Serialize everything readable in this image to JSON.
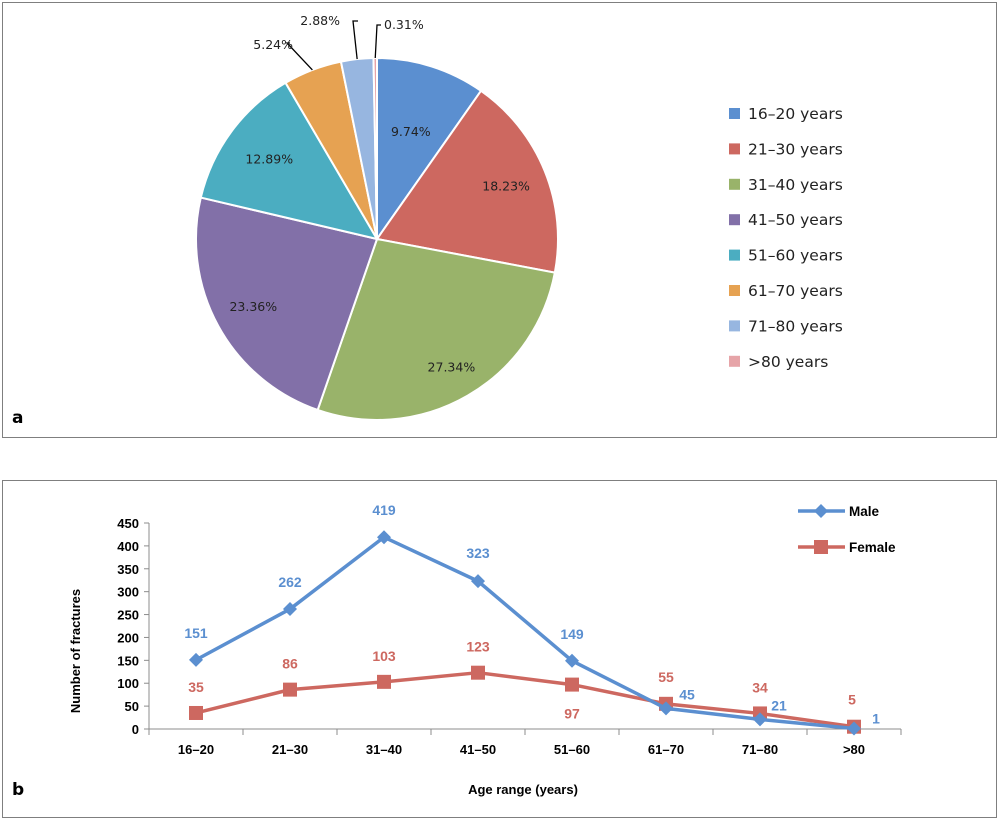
{
  "chart_data": [
    {
      "type": "pie",
      "panel_label": "a",
      "title": "",
      "categories": [
        "16–20 years",
        "21–30 years",
        "31–40 years",
        "41–50 years",
        "51–60 years",
        "61–70 years",
        "71–80 years",
        ">80 years"
      ],
      "values": [
        9.74,
        18.23,
        27.34,
        23.36,
        12.89,
        5.24,
        2.88,
        0.31
      ],
      "labels": [
        "9.74%",
        "18.23%",
        "27.34%",
        "23.36%",
        "12.89%",
        "5.24%",
        "2.88%",
        "0.31%"
      ],
      "colors": [
        "#5b8fd0",
        "#cd6860",
        "#99b36a",
        "#8270a8",
        "#4badc1",
        "#e6a252",
        "#97b6e0",
        "#e6a4a8"
      ],
      "legend_position": "right"
    },
    {
      "type": "line",
      "panel_label": "b",
      "title": "",
      "xlabel": "Age range (years)",
      "ylabel": "Number of fractures",
      "categories": [
        "16–20",
        "21–30",
        "31–40",
        "41–50",
        "51–60",
        "61–70",
        "71–80",
        ">80"
      ],
      "ylim": [
        0,
        450
      ],
      "yticks": [
        "0",
        "50",
        "100",
        "150",
        "200",
        "250",
        "300",
        "350",
        "400",
        "450"
      ],
      "series": [
        {
          "name": "Male",
          "values": [
            151,
            262,
            419,
            323,
            149,
            45,
            21,
            1
          ],
          "labels": [
            "151",
            "262",
            "419",
            "323",
            "149",
            "45",
            "21",
            "1"
          ],
          "color": "#5b8fd0",
          "marker": "diamond"
        },
        {
          "name": "Female",
          "values": [
            35,
            86,
            103,
            123,
            97,
            55,
            34,
            5
          ],
          "labels": [
            "35",
            "86",
            "103",
            "123",
            "97",
            "55",
            "34",
            "5"
          ],
          "color": "#cd6860",
          "marker": "square"
        }
      ],
      "legend_position": "top-right"
    }
  ]
}
